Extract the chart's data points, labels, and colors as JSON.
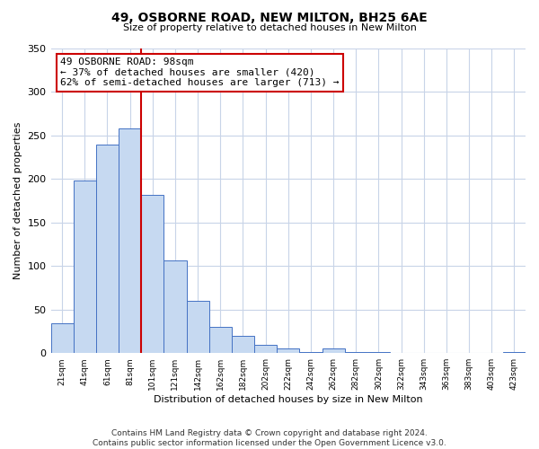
{
  "title": "49, OSBORNE ROAD, NEW MILTON, BH25 6AE",
  "subtitle": "Size of property relative to detached houses in New Milton",
  "xlabel": "Distribution of detached houses by size in New Milton",
  "ylabel": "Number of detached properties",
  "bar_labels": [
    "21sqm",
    "41sqm",
    "61sqm",
    "81sqm",
    "101sqm",
    "121sqm",
    "142sqm",
    "162sqm",
    "182sqm",
    "202sqm",
    "222sqm",
    "242sqm",
    "262sqm",
    "282sqm",
    "302sqm",
    "322sqm",
    "343sqm",
    "363sqm",
    "383sqm",
    "403sqm",
    "423sqm"
  ],
  "bar_values": [
    34,
    198,
    240,
    258,
    182,
    107,
    60,
    30,
    20,
    10,
    5,
    1,
    5,
    1,
    1,
    0,
    0,
    0,
    0,
    0,
    1
  ],
  "bar_color": "#c6d9f1",
  "bar_edge_color": "#4472c4",
  "vline_color": "#cc0000",
  "annotation_line1": "49 OSBORNE ROAD: 98sqm",
  "annotation_line2": "← 37% of detached houses are smaller (420)",
  "annotation_line3": "62% of semi-detached houses are larger (713) →",
  "annotation_box_edgecolor": "#cc0000",
  "ylim": [
    0,
    350
  ],
  "yticks": [
    0,
    50,
    100,
    150,
    200,
    250,
    300,
    350
  ],
  "footer_text": "Contains HM Land Registry data © Crown copyright and database right 2024.\nContains public sector information licensed under the Open Government Licence v3.0.",
  "bg_color": "#ffffff",
  "grid_color": "#c8d4e8"
}
